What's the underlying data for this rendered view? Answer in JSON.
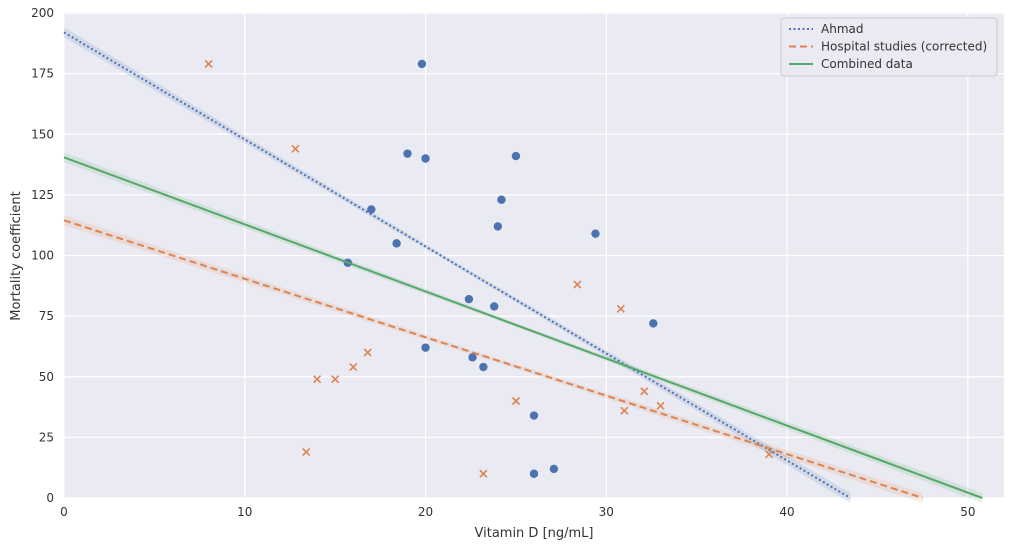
{
  "chart_data": {
    "type": "scatter",
    "xlabel": "Vitamin D [ng/mL]",
    "ylabel": "Mortality coefficient",
    "xlim": [
      0,
      52
    ],
    "ylim": [
      0,
      200
    ],
    "x_ticks": [
      0,
      10,
      20,
      30,
      40,
      50
    ],
    "y_ticks": [
      0,
      25,
      50,
      75,
      100,
      125,
      150,
      175,
      200
    ],
    "grid": true,
    "legend_position": "top-right",
    "colors": {
      "blue": "#4c72b0",
      "orange": "#dd8452",
      "green": "#55a868",
      "background": "#eaeaf2",
      "grid": "#ffffff"
    },
    "scatter": [
      {
        "marker": "circle",
        "color": "#4c72b0",
        "points": [
          [
            19.8,
            179
          ],
          [
            19,
            142
          ],
          [
            20,
            140
          ],
          [
            25,
            141
          ],
          [
            24.2,
            123
          ],
          [
            17,
            119
          ],
          [
            24,
            112
          ],
          [
            29.4,
            109
          ],
          [
            18.4,
            105
          ],
          [
            15.7,
            97
          ],
          [
            22.4,
            82
          ],
          [
            23.8,
            79
          ],
          [
            32.6,
            72
          ],
          [
            20,
            62
          ],
          [
            22.6,
            58
          ],
          [
            23.2,
            54
          ],
          [
            26,
            34
          ],
          [
            26,
            10
          ],
          [
            27.1,
            12
          ]
        ]
      },
      {
        "marker": "x",
        "color": "#dd8452",
        "points": [
          [
            8,
            179
          ],
          [
            12.8,
            144
          ],
          [
            28.4,
            88
          ],
          [
            30.8,
            78
          ],
          [
            16.8,
            60
          ],
          [
            16,
            54
          ],
          [
            14,
            49
          ],
          [
            15,
            49
          ],
          [
            32.1,
            44
          ],
          [
            25,
            40
          ],
          [
            33,
            38
          ],
          [
            31,
            36
          ],
          [
            13.4,
            19
          ],
          [
            39,
            18
          ],
          [
            23.2,
            10
          ]
        ]
      }
    ],
    "lines": [
      {
        "name": "Ahmad",
        "style": "dotted",
        "color": "#4c72b0",
        "x": [
          0,
          43.5
        ],
        "y": [
          192,
          0
        ]
      },
      {
        "name": "Hospital studies (corrected)",
        "style": "dashed",
        "color": "#dd8452",
        "x": [
          0,
          47.5
        ],
        "y": [
          114.5,
          0
        ]
      },
      {
        "name": "Combined data",
        "style": "solid",
        "color": "#55a868",
        "x": [
          0,
          50.8
        ],
        "y": [
          140.5,
          0
        ]
      }
    ]
  }
}
